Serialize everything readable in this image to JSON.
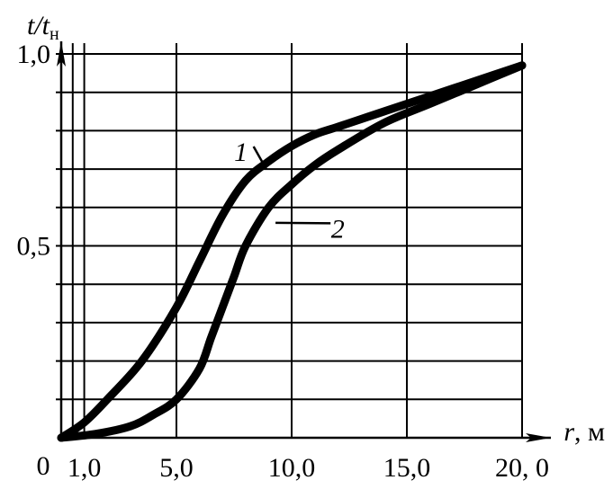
{
  "chart_data": {
    "type": "line",
    "ylabel_parts": {
      "main": "t/t",
      "sub": "н"
    },
    "xlabel": "r, м",
    "origin_label": "0",
    "x_tick_labels": [
      {
        "x": 1.0,
        "label": "1,0"
      },
      {
        "x": 5.0,
        "label": "5,0"
      },
      {
        "x": 10.0,
        "label": "10,0"
      },
      {
        "x": 15.0,
        "label": "15,0"
      },
      {
        "x": 20.0,
        "label": "20, 0"
      }
    ],
    "y_tick_labels": [
      {
        "y": 0.5,
        "label": "0,5"
      },
      {
        "y": 1.0,
        "label": "1,0"
      }
    ],
    "x_gridlines": [
      0.5,
      1.0,
      5.0,
      10.0,
      15.0,
      20.0
    ],
    "y_gridlines": [
      0.1,
      0.2,
      0.3,
      0.4,
      0.5,
      0.6,
      0.7,
      0.8,
      0.9,
      1.0
    ],
    "xlim": [
      0,
      20.0
    ],
    "ylim": [
      0,
      1.0
    ],
    "grid": true,
    "series": [
      {
        "name": "1",
        "x": [
          0,
          1.0,
          2.0,
          3.5,
          5.0,
          6.0,
          7.0,
          8.0,
          9.0,
          10.0,
          11.0,
          12.0,
          14.0,
          16.0,
          18.0,
          20.0
        ],
        "y": [
          0,
          0.04,
          0.1,
          0.2,
          0.34,
          0.46,
          0.58,
          0.67,
          0.72,
          0.76,
          0.79,
          0.81,
          0.85,
          0.89,
          0.93,
          0.97
        ]
      },
      {
        "name": "2",
        "x": [
          0,
          1.5,
          3.0,
          4.0,
          5.0,
          6.0,
          6.5,
          7.0,
          7.5,
          8.0,
          9.0,
          10.0,
          11.0,
          12.0,
          14.0,
          16.0,
          18.0,
          20.0
        ],
        "y": [
          0,
          0.01,
          0.03,
          0.06,
          0.1,
          0.18,
          0.26,
          0.34,
          0.42,
          0.5,
          0.6,
          0.66,
          0.71,
          0.75,
          0.82,
          0.87,
          0.92,
          0.97
        ]
      }
    ],
    "series_labels": [
      {
        "text": "1",
        "x": 7.8,
        "y": 0.74,
        "leader_to": [
          8.9,
          0.7
        ]
      },
      {
        "text": "2",
        "x": 12.0,
        "y": 0.54,
        "leader_to": [
          9.3,
          0.56
        ]
      }
    ]
  }
}
